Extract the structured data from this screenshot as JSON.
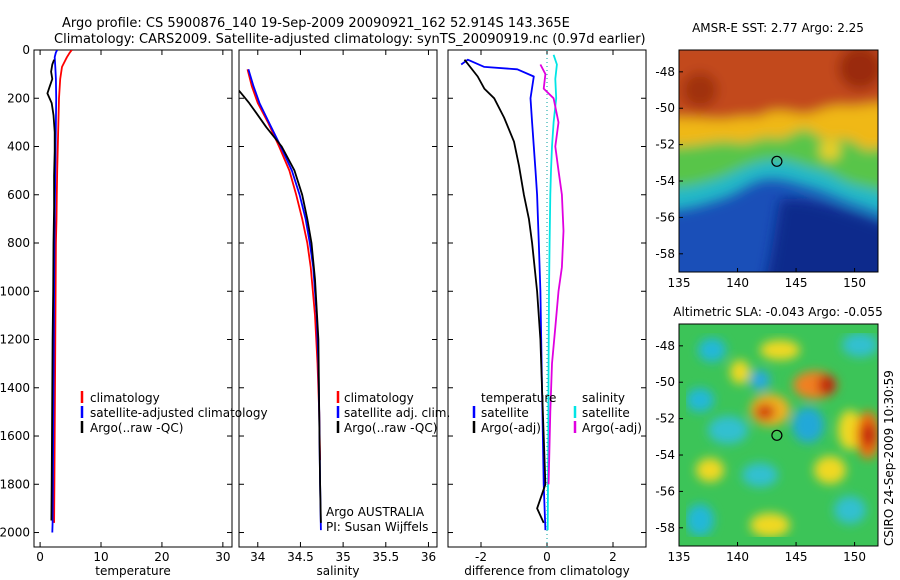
{
  "figure": {
    "title_line1": "Argo profile: CS 5900876_140 19-Sep-2009 20090921_162 52.914S 143.365E",
    "title_line2": "Climatology: CARS2009. Satellite-adjusted climatology: synTS_20090919.nc (0.97d earlier)",
    "credit": "CSIRO 24-Sep-2009 10:30:59"
  },
  "colors": {
    "climatology": "#ff0000",
    "satellite": "#0000ff",
    "argo": "#000000",
    "satellite_sal": "#00e5e5",
    "argo_sal": "#e000e0",
    "zero_line": "#00a0a0"
  },
  "chart_data": [
    {
      "id": "temperature",
      "type": "line",
      "xlabel": "temperature",
      "xlim": [
        -1,
        31.5
      ],
      "ylim": [
        2060,
        0
      ],
      "xticks": [
        0,
        10,
        20,
        30
      ],
      "yticks": [
        0,
        200,
        400,
        600,
        800,
        1000,
        1200,
        1400,
        1600,
        1800,
        2000
      ],
      "legend": [
        "climatology",
        "satellite-adjusted climatology",
        "Argo(..raw -QC)"
      ],
      "series": [
        {
          "name": "climatology",
          "color_key": "climatology",
          "x": [
            5.2,
            4.9,
            4.4,
            3.6,
            3.3,
            3.1,
            3.0,
            2.9,
            2.8,
            2.75,
            2.7,
            2.6,
            2.55,
            2.5,
            2.45,
            2.4,
            2.35,
            2.3
          ],
          "y": [
            0,
            10,
            30,
            70,
            120,
            200,
            300,
            400,
            500,
            600,
            700,
            800,
            1000,
            1200,
            1400,
            1600,
            1800,
            1960
          ]
        },
        {
          "name": "satellite",
          "color_key": "satellite",
          "x": [
            2.8,
            2.6,
            2.4,
            2.5,
            2.6,
            2.65,
            2.6,
            2.55,
            2.5,
            2.45,
            2.4,
            2.35,
            2.3,
            2.25,
            2.2,
            2.15,
            2.1,
            2.05,
            2.0
          ],
          "y": [
            0,
            10,
            30,
            70,
            120,
            200,
            300,
            400,
            500,
            600,
            700,
            800,
            1000,
            1200,
            1400,
            1600,
            1800,
            1960,
            2000
          ]
        },
        {
          "name": "Argo",
          "color_key": "argo",
          "x": [
            2.3,
            2.0,
            1.8,
            2.0,
            1.6,
            1.2,
            1.9,
            2.2,
            2.4,
            2.4,
            2.3,
            2.3,
            2.2,
            2.15,
            2.05,
            2.0,
            1.95,
            1.9,
            1.85
          ],
          "y": [
            40,
            60,
            90,
            120,
            150,
            180,
            220,
            270,
            340,
            420,
            520,
            650,
            800,
            1000,
            1200,
            1400,
            1600,
            1800,
            1950
          ]
        }
      ]
    },
    {
      "id": "salinity",
      "type": "line",
      "xlabel": "salinity",
      "xlim": [
        33.78,
        36.1
      ],
      "ylim": [
        2060,
        0
      ],
      "xticks": [
        34,
        34.5,
        35,
        35.5,
        36
      ],
      "legend": [
        "climatology",
        "satellite adj. clim.",
        "Argo(..raw -QC)"
      ],
      "annotation": [
        "Argo AUSTRALIA",
        "PI: Susan Wijffels"
      ],
      "series": [
        {
          "name": "climatology",
          "color_key": "climatology",
          "x": [
            33.88,
            33.93,
            34.0,
            34.12,
            34.25,
            34.37,
            34.45,
            34.52,
            34.58,
            34.62,
            34.67,
            34.7,
            34.72,
            34.73
          ],
          "y": [
            80,
            150,
            220,
            300,
            400,
            500,
            600,
            700,
            800,
            900,
            1100,
            1300,
            1500,
            1700
          ]
        },
        {
          "name": "satellite",
          "color_key": "satellite",
          "x": [
            33.89,
            33.95,
            34.02,
            34.13,
            34.27,
            34.4,
            34.49,
            34.56,
            34.61,
            34.65,
            34.69,
            34.71,
            34.72,
            34.73,
            34.74
          ],
          "y": [
            80,
            150,
            220,
            300,
            400,
            500,
            600,
            700,
            800,
            900,
            1100,
            1300,
            1500,
            1800,
            1990
          ]
        },
        {
          "name": "Argo",
          "color_key": "argo",
          "x": [
            33.76,
            33.83,
            33.9,
            33.98,
            34.1,
            34.28,
            34.43,
            34.52,
            34.58,
            34.63,
            34.67,
            34.71,
            34.72,
            34.73,
            34.74
          ],
          "y": [
            160,
            190,
            220,
            260,
            320,
            400,
            500,
            600,
            700,
            800,
            950,
            1200,
            1500,
            1800,
            1960
          ]
        }
      ]
    },
    {
      "id": "difference",
      "type": "line",
      "xlabel": "difference from climatology",
      "xlim": [
        -3.0,
        3.0
      ],
      "ylim": [
        2060,
        0
      ],
      "xticks": [
        -2,
        0,
        2
      ],
      "legend_left_title": "temperature",
      "legend_right_title": "salinity",
      "legend_left": [
        "satellite",
        "Argo(-adj)"
      ],
      "legend_right": [
        "satellite",
        "Argo(-adj)"
      ],
      "series": [
        {
          "name": "temperature satellite",
          "color_key": "satellite",
          "x": [
            -2.6,
            -2.4,
            -1.9,
            -0.9,
            -0.4,
            -0.5,
            -0.45,
            -0.4,
            -0.35,
            -0.3,
            -0.25,
            -0.2,
            -0.15,
            -0.1,
            -0.05
          ],
          "y": [
            60,
            40,
            70,
            80,
            110,
            200,
            300,
            400,
            500,
            600,
            800,
            1000,
            1400,
            1800,
            1990
          ]
        },
        {
          "name": "temperature Argo",
          "color_key": "argo",
          "x": [
            -2.5,
            -2.1,
            -1.9,
            -1.6,
            -1.3,
            -1.0,
            -0.85,
            -0.7,
            -0.55,
            -0.45,
            -0.3,
            -0.2,
            -0.15,
            -0.1,
            -0.05,
            -0.3,
            -0.1
          ],
          "y": [
            40,
            110,
            160,
            200,
            280,
            380,
            480,
            600,
            700,
            800,
            1000,
            1200,
            1400,
            1600,
            1800,
            1900,
            1960
          ]
        },
        {
          "name": "salinity satellite",
          "color_key": "satellite_sal",
          "x": [
            0.2,
            0.3,
            0.25,
            0.28,
            0.2,
            0.15,
            0.12,
            0.1,
            0.08,
            0.06,
            0.05,
            0.04,
            0.03,
            0.02
          ],
          "y": [
            20,
            60,
            120,
            200,
            300,
            400,
            500,
            600,
            800,
            1000,
            1300,
            1600,
            1800,
            1990
          ]
        },
        {
          "name": "salinity Argo",
          "color_key": "argo_sal",
          "x": [
            -0.2,
            -0.05,
            -0.1,
            0.2,
            0.35,
            0.25,
            0.35,
            0.45,
            0.5,
            0.45,
            0.35,
            0.25,
            0.15,
            0.1,
            0.05
          ],
          "y": [
            60,
            100,
            160,
            200,
            300,
            400,
            500,
            600,
            750,
            900,
            1000,
            1150,
            1300,
            1500,
            1800
          ]
        }
      ]
    },
    {
      "id": "sst_map",
      "type": "heatmap",
      "title": "AMSR-E SST: 2.77 Argo: 2.25",
      "xlim": [
        135,
        152
      ],
      "ylim": [
        -59,
        -46.8
      ],
      "xticks": [
        135,
        140,
        145,
        150
      ],
      "yticks": [
        -48,
        -50,
        -52,
        -54,
        -56,
        -58
      ],
      "marker": {
        "lon": 143.365,
        "lat": -52.914
      }
    },
    {
      "id": "sla_map",
      "type": "heatmap",
      "title": "Altimetric SLA: -0.043 Argo: -0.055",
      "xlim": [
        135,
        152
      ],
      "ylim": [
        -59,
        -46.8
      ],
      "xticks": [
        135,
        140,
        145,
        150
      ],
      "yticks": [
        -48,
        -50,
        -52,
        -54,
        -56,
        -58
      ],
      "marker": {
        "lon": 143.365,
        "lat": -52.914
      }
    }
  ]
}
